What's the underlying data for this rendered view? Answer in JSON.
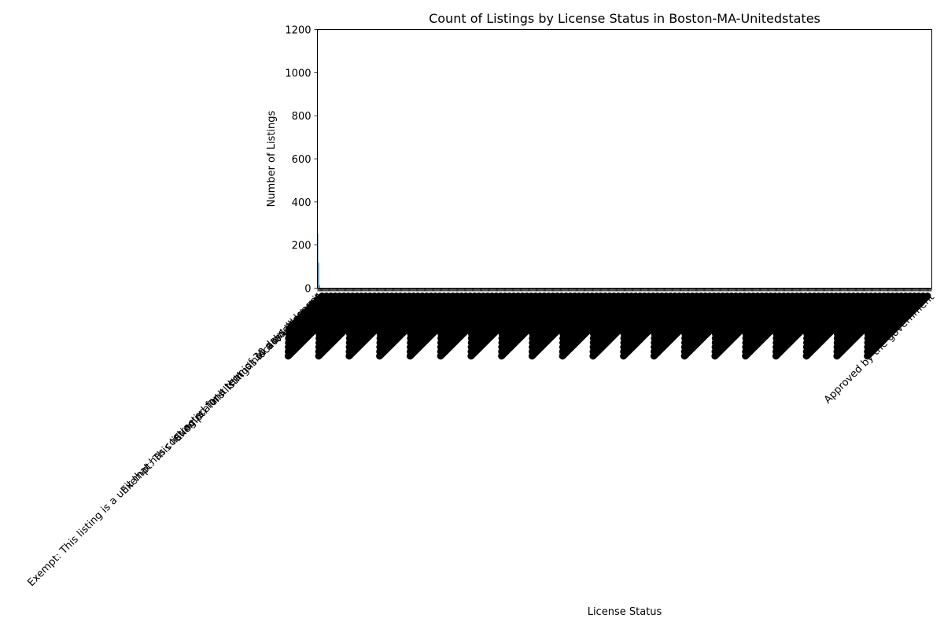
{
  "chart_data": {
    "type": "bar",
    "title": "Count of Listings by License Status in Boston-MA-Unitedstates",
    "xlabel": "License Status",
    "ylabel": "Number of Listings",
    "ylim": [
      0,
      1200
    ],
    "yticks": [
      0,
      200,
      400,
      600,
      800,
      1000,
      1200
    ],
    "bar_color": "#1f77b4",
    "grid": false,
    "legend": "none",
    "categories": [
      "Exempt: This listing is a unit that has contracted for a term of 30 days or longer",
      "Exempt: This listing is a unit that is not a dwelling unit",
      "Exempt: This listing is located in a hotel",
      "Approved by the government"
    ],
    "values": [
      254,
      118,
      14,
      8
    ],
    "additional_single_count_categories": 700,
    "additional_single_count_value": 1
  }
}
